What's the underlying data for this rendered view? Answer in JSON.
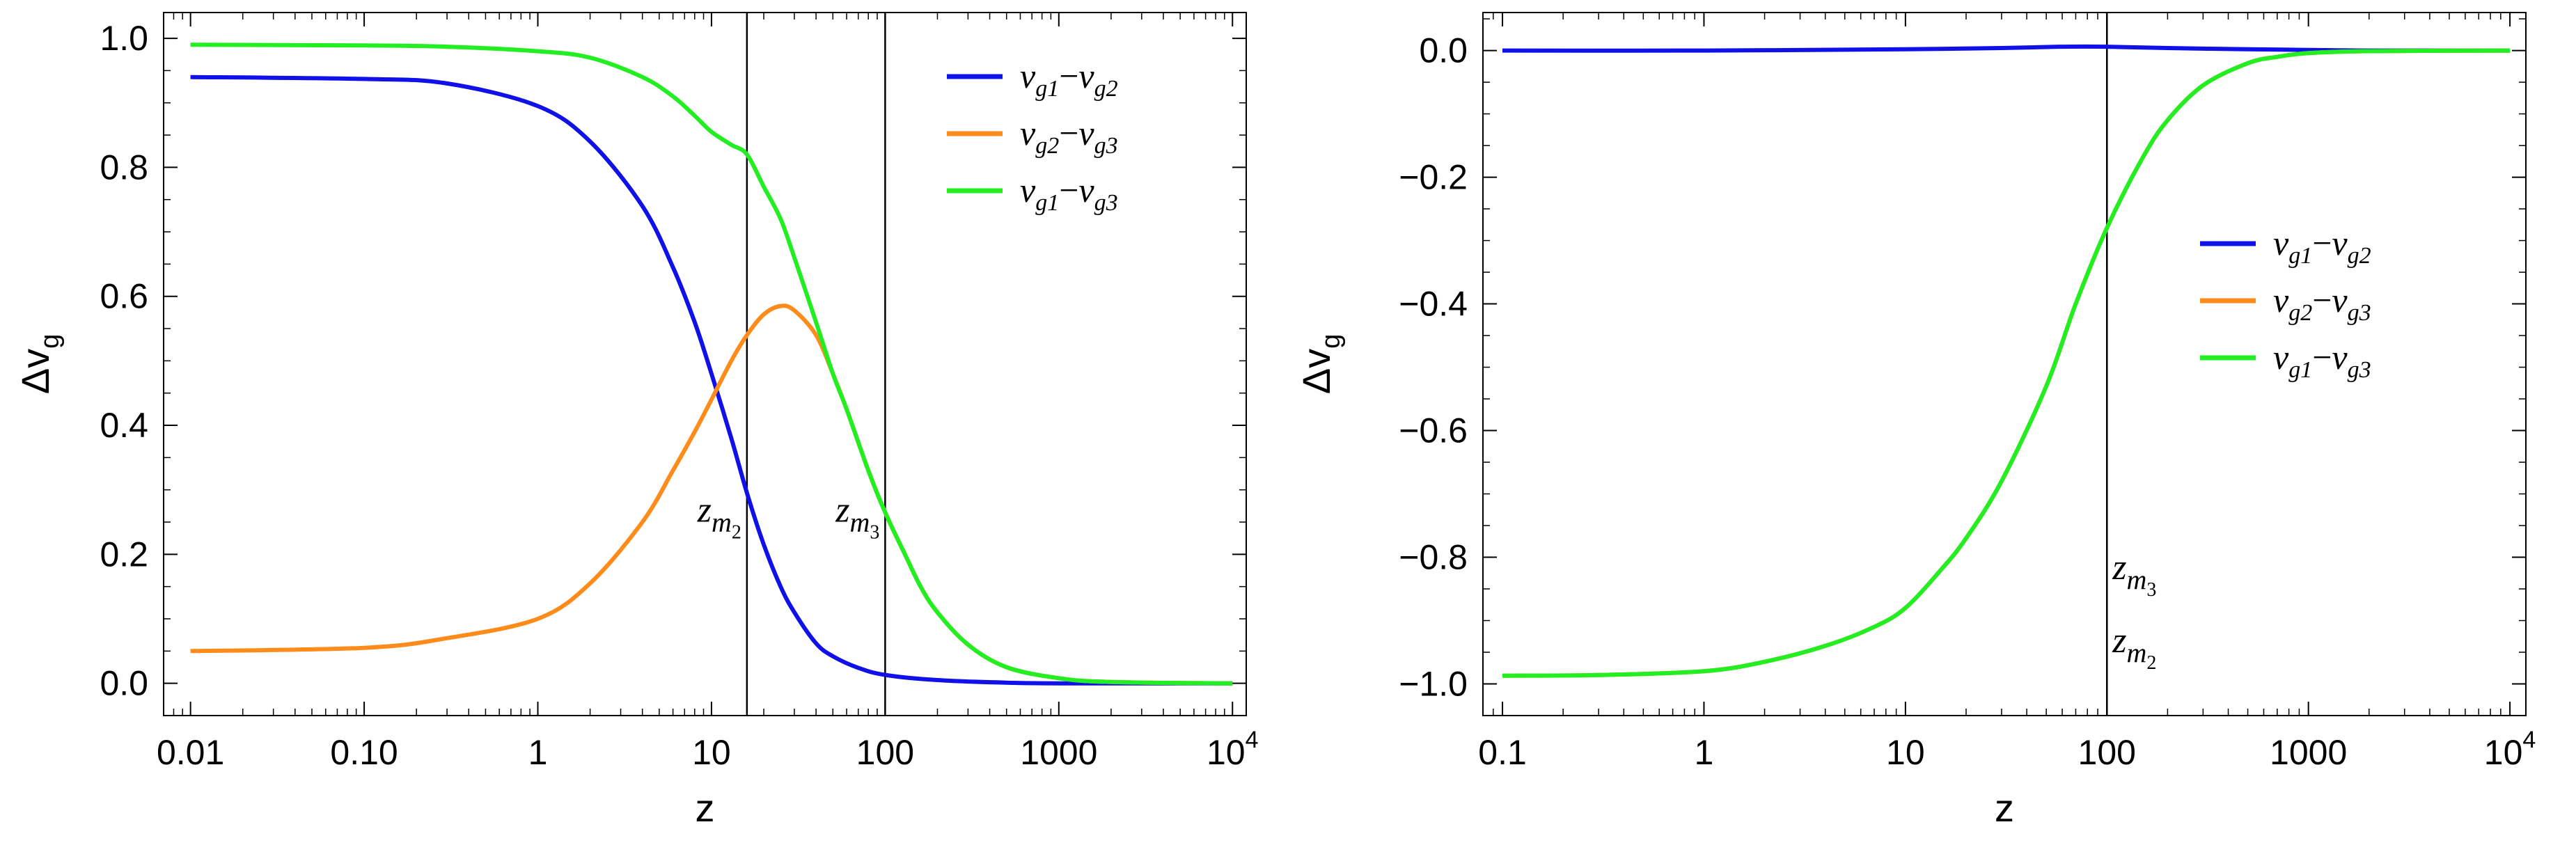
{
  "chart_data": [
    {
      "type": "line",
      "xscale": "log",
      "xlabel": "z",
      "ylabel": "Δv",
      "ylabel_sub": "g",
      "xlim": [
        0.007,
        12000
      ],
      "ylim": [
        -0.05,
        1.04
      ],
      "xticks": [
        {
          "value": 0.01,
          "label": "0.01"
        },
        {
          "value": 0.1,
          "label": "0.10"
        },
        {
          "value": 1,
          "label": "1"
        },
        {
          "value": 10,
          "label": "10"
        },
        {
          "value": 100,
          "label": "100"
        },
        {
          "value": 1000,
          "label": "1000"
        },
        {
          "value": 10000,
          "label": "10",
          "sup": "4"
        }
      ],
      "yticks": [
        {
          "value": 0.0,
          "label": "0.0"
        },
        {
          "value": 0.2,
          "label": "0.2"
        },
        {
          "value": 0.4,
          "label": "0.4"
        },
        {
          "value": 0.6,
          "label": "0.6"
        },
        {
          "value": 0.8,
          "label": "0.8"
        },
        {
          "value": 1.0,
          "label": "1.0"
        }
      ],
      "series": [
        {
          "name": "v_g1−v_g2",
          "color": "#1010e8",
          "x": [
            0.01,
            0.1,
            0.3,
            1,
            2,
            4,
            6,
            8,
            10,
            13,
            16,
            20,
            25,
            30,
            40,
            50,
            70,
            100,
            200,
            500,
            1000,
            10000
          ],
          "y": [
            0.94,
            0.937,
            0.93,
            0.895,
            0.84,
            0.74,
            0.645,
            0.56,
            0.48,
            0.38,
            0.295,
            0.215,
            0.15,
            0.11,
            0.062,
            0.042,
            0.024,
            0.013,
            0.005,
            0.001,
            0.0,
            0.0
          ]
        },
        {
          "name": "v_g2−v_g3",
          "color": "#ff8b1a",
          "x": [
            0.01,
            0.1,
            0.3,
            1,
            2,
            4,
            6,
            8,
            10,
            13,
            16,
            20,
            25,
            30,
            40,
            50,
            60,
            80,
            100,
            130,
            160,
            200,
            300,
            500,
            1000,
            2000,
            10000
          ],
          "y": [
            0.05,
            0.055,
            0.07,
            0.1,
            0.155,
            0.25,
            0.33,
            0.39,
            0.44,
            0.5,
            0.54,
            0.572,
            0.585,
            0.578,
            0.54,
            0.48,
            0.425,
            0.33,
            0.265,
            0.2,
            0.15,
            0.11,
            0.06,
            0.025,
            0.008,
            0.002,
            0.0
          ]
        },
        {
          "name": "v_g1−v_g3",
          "color": "#22ee22",
          "x": [
            0.01,
            0.1,
            0.3,
            1,
            2,
            4,
            6,
            8,
            10,
            13,
            16,
            20,
            25,
            30,
            40,
            50,
            60,
            80,
            100,
            130,
            160,
            200,
            300,
            500,
            1000,
            2000,
            10000
          ],
          "y": [
            0.99,
            0.989,
            0.987,
            0.98,
            0.97,
            0.94,
            0.91,
            0.88,
            0.855,
            0.835,
            0.82,
            0.77,
            0.72,
            0.66,
            0.56,
            0.48,
            0.425,
            0.33,
            0.265,
            0.2,
            0.15,
            0.11,
            0.06,
            0.025,
            0.008,
            0.002,
            0.0
          ]
        }
      ],
      "legend": {
        "position": "top-right",
        "entries": [
          {
            "a": "v",
            "as": "g1",
            "b": "v",
            "bs": "g2"
          },
          {
            "a": "v",
            "as": "g2",
            "b": "v",
            "bs": "g3"
          },
          {
            "a": "v",
            "as": "g1",
            "b": "v",
            "bs": "g3"
          }
        ]
      },
      "vlines": [
        16,
        100
      ],
      "annotations": [
        {
          "at_x": 16,
          "at_y": 0.27,
          "base": "z",
          "sub": "m",
          "subsub": "2"
        },
        {
          "at_x": 100,
          "at_y": 0.27,
          "base": "z",
          "sub": "m",
          "subsub": "3"
        }
      ]
    },
    {
      "type": "line",
      "xscale": "log",
      "xlabel": "z",
      "ylabel": "Δv",
      "ylabel_sub": "g",
      "xlim": [
        0.08,
        12000
      ],
      "ylim": [
        -1.05,
        0.06
      ],
      "xticks": [
        {
          "value": 0.1,
          "label": "0.1"
        },
        {
          "value": 1,
          "label": "1"
        },
        {
          "value": 10,
          "label": "10"
        },
        {
          "value": 100,
          "label": "100"
        },
        {
          "value": 1000,
          "label": "1000"
        },
        {
          "value": 10000,
          "label": "10",
          "sup": "4"
        }
      ],
      "yticks": [
        {
          "value": 0.0,
          "label": "0.0"
        },
        {
          "value": -0.2,
          "label": "−0.2"
        },
        {
          "value": -0.4,
          "label": "−0.4"
        },
        {
          "value": -0.6,
          "label": "−0.6"
        },
        {
          "value": -0.8,
          "label": "−0.8"
        },
        {
          "value": -1.0,
          "label": "−1.0"
        }
      ],
      "series": [
        {
          "name": "v_g1−v_g2",
          "color": "#1010e8",
          "x": [
            0.1,
            1,
            10,
            30,
            60,
            100,
            200,
            500,
            1000,
            2000,
            10000
          ],
          "y": [
            0.0,
            0.0,
            0.002,
            0.004,
            0.006,
            0.006,
            0.004,
            0.002,
            0.001,
            0.0,
            0.0
          ]
        },
        {
          "name": "v_g2−v_g3",
          "color": "#ff8b1a",
          "x": [
            0.1,
            0.3,
            1,
            2,
            4,
            7,
            10,
            15,
            20,
            30,
            50,
            70,
            100,
            150,
            200,
            300,
            500,
            700,
            1000,
            2000,
            10000
          ],
          "y": [
            -0.987,
            -0.986,
            -0.98,
            -0.965,
            -0.94,
            -0.91,
            -0.88,
            -0.82,
            -0.77,
            -0.68,
            -0.53,
            -0.4,
            -0.28,
            -0.17,
            -0.11,
            -0.055,
            -0.02,
            -0.01,
            -0.004,
            -0.001,
            0.0
          ]
        },
        {
          "name": "v_g1−v_g3",
          "color": "#22ee22",
          "x": [
            0.1,
            0.3,
            1,
            2,
            4,
            7,
            10,
            15,
            20,
            30,
            50,
            70,
            100,
            150,
            200,
            300,
            500,
            700,
            1000,
            2000,
            10000
          ],
          "y": [
            -0.987,
            -0.986,
            -0.98,
            -0.965,
            -0.94,
            -0.91,
            -0.88,
            -0.82,
            -0.77,
            -0.68,
            -0.53,
            -0.4,
            -0.28,
            -0.17,
            -0.11,
            -0.055,
            -0.02,
            -0.01,
            -0.004,
            -0.001,
            0.0
          ]
        }
      ],
      "legend": {
        "position": "center-right",
        "entries": [
          {
            "a": "v",
            "as": "g1",
            "b": "v",
            "bs": "g2"
          },
          {
            "a": "v",
            "as": "g2",
            "b": "v",
            "bs": "g3"
          },
          {
            "a": "v",
            "as": "g1",
            "b": "v",
            "bs": "g3"
          }
        ]
      },
      "vlines": [
        100
      ],
      "annotations": [
        {
          "at_x": 100,
          "at_y": -0.815,
          "base": "z",
          "sub": "m",
          "subsub": "3"
        },
        {
          "at_x": 100,
          "at_y": -0.93,
          "base": "z",
          "sub": "m",
          "subsub": "2"
        }
      ]
    }
  ]
}
